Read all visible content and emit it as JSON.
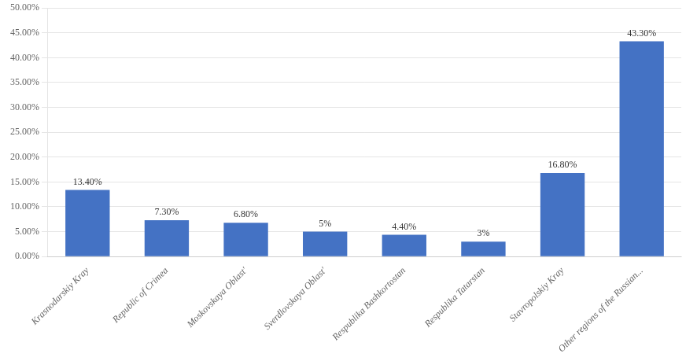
{
  "chart_data": {
    "type": "bar",
    "categories": [
      "Krasnodarskiy Kray",
      "Republic of Crimea",
      "Moskovskaya Oblast'",
      "Sverdlovskaya Oblast'",
      "Respublika Bashkortostan",
      "Respublika Tatarstan",
      "Stavropolskiy Kray",
      "Other regions of the Russian..."
    ],
    "values": [
      13.4,
      7.3,
      6.8,
      5.0,
      4.4,
      3.0,
      16.8,
      43.3
    ],
    "value_labels": [
      "13.40%",
      "7.30%",
      "6.80%",
      "5%",
      "4.40%",
      "3%",
      "16.80%",
      "43.30%"
    ],
    "color": "#4472C4",
    "ylim": [
      0,
      50
    ],
    "yticks": [
      {
        "value": 0,
        "label": "0.00%"
      },
      {
        "value": 5,
        "label": "5.00%"
      },
      {
        "value": 10,
        "label": "10.00%"
      },
      {
        "value": 15,
        "label": "15.00%"
      },
      {
        "value": 20,
        "label": "20.00%"
      },
      {
        "value": 25,
        "label": "25.00%"
      },
      {
        "value": 30,
        "label": "30.00%"
      },
      {
        "value": 35,
        "label": "35.00%"
      },
      {
        "value": 40,
        "label": "40.00%"
      },
      {
        "value": 45,
        "label": "45.00%"
      },
      {
        "value": 50,
        "label": "50.00%"
      }
    ],
    "grid": true,
    "data_labels": true
  }
}
